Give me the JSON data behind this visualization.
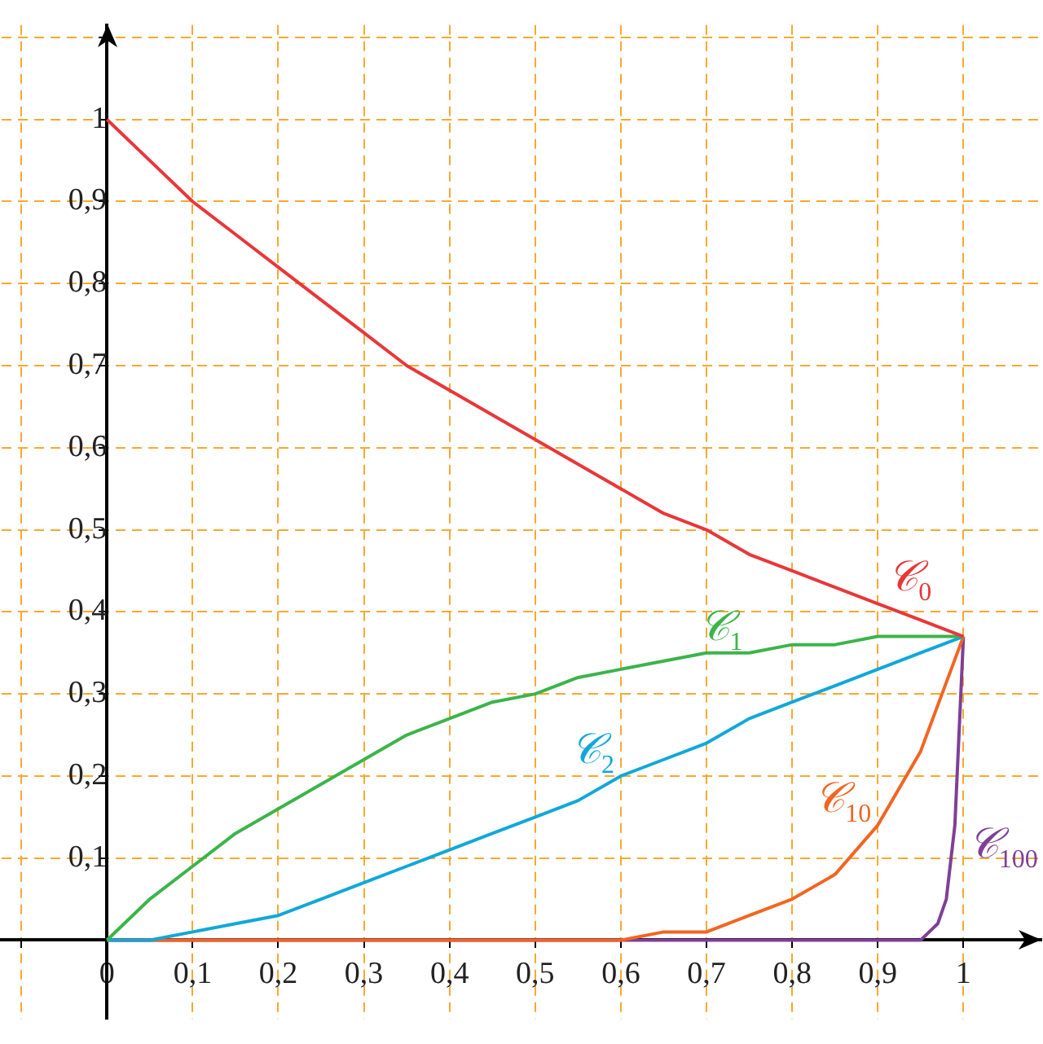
{
  "chart_data": {
    "type": "line",
    "xlim": [
      -0.123,
      1.091
    ],
    "ylim": [
      -0.096,
      1.115
    ],
    "xticks": [
      {
        "value": -0.1,
        "label": null
      },
      {
        "value": 0,
        "label": "0"
      },
      {
        "value": 0.1,
        "label": "0,1"
      },
      {
        "value": 0.2,
        "label": "0,2"
      },
      {
        "value": 0.3,
        "label": "0,3"
      },
      {
        "value": 0.4,
        "label": "0,4"
      },
      {
        "value": 0.5,
        "label": "0,5"
      },
      {
        "value": 0.6,
        "label": "0,6"
      },
      {
        "value": 0.7,
        "label": "0,7"
      },
      {
        "value": 0.8,
        "label": "0,8"
      },
      {
        "value": 0.9,
        "label": "0,9"
      },
      {
        "value": 1,
        "label": "1"
      }
    ],
    "yticks": [
      {
        "value": 0,
        "label": null
      },
      {
        "value": 0.1,
        "label": "0,1"
      },
      {
        "value": 0.2,
        "label": "0,2"
      },
      {
        "value": 0.3,
        "label": "0,3"
      },
      {
        "value": 0.4,
        "label": "0,4"
      },
      {
        "value": 0.5,
        "label": "0,5"
      },
      {
        "value": 0.6,
        "label": "0,6"
      },
      {
        "value": 0.7,
        "label": "0,7"
      },
      {
        "value": 0.8,
        "label": "0,8"
      },
      {
        "value": 0.9,
        "label": "0,9"
      },
      {
        "value": 1,
        "label": "1"
      },
      {
        "value": 1.1,
        "label": null
      }
    ],
    "grid": true,
    "legend": false,
    "marker": "none",
    "line_style": "solid",
    "x": [
      0,
      0.05,
      0.1,
      0.15,
      0.2,
      0.25,
      0.3,
      0.35,
      0.4,
      0.45,
      0.5,
      0.55,
      0.6,
      0.65,
      0.7,
      0.75,
      0.8,
      0.85,
      0.9,
      0.95,
      1
    ],
    "series": [
      {
        "color": "#e8373a",
        "values": [
          1,
          0.95,
          0.9,
          0.86,
          0.82,
          0.78,
          0.74,
          0.7,
          0.67,
          0.64,
          0.61,
          0.58,
          0.55,
          0.52,
          0.5,
          0.47,
          0.45,
          0.43,
          0.41,
          0.39,
          0.37
        ]
      },
      {
        "color": "#3cb44a",
        "values": [
          0,
          0.05,
          0.09,
          0.13,
          0.16,
          0.19,
          0.22,
          0.25,
          0.27,
          0.29,
          0.3,
          0.32,
          0.33,
          0.34,
          0.35,
          0.35,
          0.36,
          0.36,
          0.37,
          0.37,
          0.37
        ]
      },
      {
        "color": "#10a8d8",
        "values": [
          0,
          0,
          0.01,
          0.02,
          0.03,
          0.05,
          0.07,
          0.09,
          0.11,
          0.13,
          0.15,
          0.17,
          0.2,
          0.22,
          0.24,
          0.27,
          0.29,
          0.31,
          0.33,
          0.35,
          0.37
        ]
      },
      {
        "color": "#f26522",
        "x": [
          0,
          0.5,
          0.6,
          0.65,
          0.7,
          0.75,
          0.8,
          0.85,
          0.9,
          0.95,
          1
        ],
        "values": [
          0,
          0,
          0,
          0.01,
          0.01,
          0.03,
          0.05,
          0.08,
          0.14,
          0.23,
          0.37
        ]
      },
      {
        "color": "#7f3f98",
        "x": [
          0,
          0.9,
          0.95,
          0.96,
          0.97,
          0.98,
          0.99,
          1
        ],
        "values": [
          0,
          0,
          0,
          0.01,
          0.02,
          0.05,
          0.14,
          0.37
        ]
      }
    ],
    "annotations": [
      {
        "text": "𝒞$_{0}$",
        "x": 0.9,
        "y": 0.41
      },
      {
        "text": "𝒞$_{1}$",
        "x": 0.75,
        "y": 0.35
      },
      {
        "text": "𝒞$_{2}$",
        "x": 0.6,
        "y": 0.2
      },
      {
        "text": "𝒞$_{10}$",
        "x": 0.9,
        "y": 0.14
      },
      {
        "text": "𝒞$_{100}$",
        "x": 0.99,
        "y": 0.14
      }
    ]
  }
}
